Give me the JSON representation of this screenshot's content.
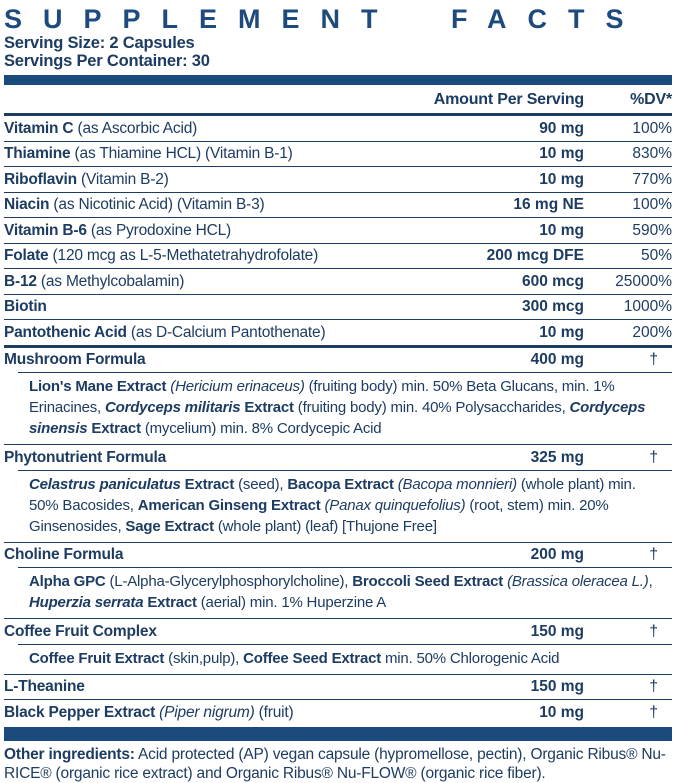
{
  "header": {
    "title": "SUPPLEMENT FACTS",
    "serving_size": "Serving Size: 2 Capsules",
    "servings_per_container": "Servings Per Container: 30"
  },
  "columns": {
    "amount": "Amount Per Serving",
    "dv": "%DV*"
  },
  "colors": {
    "text_navy": "#1d3c62",
    "bar_blue": "#1b4a7c",
    "title_blue": "#1e4b7d"
  },
  "rows": [
    {
      "name": "Vitamin C",
      "detail": " (as Ascorbic Acid)",
      "amount": "90 mg",
      "dv": "100%"
    },
    {
      "name": "Thiamine",
      "detail": " (as Thiamine HCL) (Vitamin B-1)",
      "amount": "10 mg",
      "dv": "830%"
    },
    {
      "name": "Riboflavin",
      "detail": " (Vitamin B-2)",
      "amount": "10 mg",
      "dv": "770%"
    },
    {
      "name": "Niacin",
      "detail": " (as Nicotinic Acid) (Vitamin B-3)",
      "amount": "16 mg NE",
      "dv": "100%"
    },
    {
      "name": "Vitamin B-6",
      "detail": " (as Pyrodoxine HCL)",
      "amount": "10 mg",
      "dv": "590%"
    },
    {
      "name": "Folate",
      "detail": " (120 mcg as L-5-Methatetrahydrofolate)",
      "amount": "200 mcg DFE",
      "dv": "50%"
    },
    {
      "name": "B-12",
      "detail": " (as Methylcobalamin)",
      "amount": "600 mcg",
      "dv": "25000%"
    },
    {
      "name": "Biotin",
      "detail": "",
      "amount": "300 mcg",
      "dv": "1000%"
    },
    {
      "name": "Pantothenic Acid",
      "detail": " (as D-Calcium Pantothenate)",
      "amount": "10 mg",
      "dv": "200%"
    },
    {
      "name": "Mushroom Formula",
      "amount": "400 mg",
      "dv": "†",
      "sub": [
        "Lion's Mane Extract",
        " (Hericium erinaceus)",
        " (fruiting body) min. 50% Beta Glucans, min. 1% Erinacines, ",
        "Cordyceps militaris",
        " Extract",
        " (fruiting body) min. 40% Polysaccharides, ",
        "Cordyceps sinensis",
        " Extract",
        " (mycelium) min. 8% Cordycepic Acid"
      ]
    },
    {
      "name": "Phytonutrient Formula",
      "amount": "325 mg",
      "dv": "†",
      "sub": [
        "Celastrus paniculatus",
        " Extract",
        " (seed), ",
        "Bacopa Extract",
        " (Bacopa monnieri)",
        " (whole plant) min. 50% Bacosides, ",
        "American Ginseng Extract",
        " (Panax quinquefolius)",
        " (root, stem) min. 20% Ginsenosides, ",
        "Sage Extract",
        " (whole plant) (leaf) [Thujone Free]"
      ]
    },
    {
      "name": "Choline Formula",
      "amount": "200 mg",
      "dv": "†",
      "sub": [
        "Alpha GPC",
        " (L-Alpha-Glycerylphosphorylcholine), ",
        "Broccoli Seed Extract",
        " (Brassica oleracea L.)",
        ", ",
        "Huperzia serrata",
        " Extract",
        " (aerial) min. 1% Huperzine A"
      ]
    },
    {
      "name": "Coffee Fruit Complex",
      "amount": "150 mg",
      "dv": "†",
      "sub": [
        "Coffee Fruit Extract",
        " (skin,pulp), ",
        "Coffee Seed Extract",
        " min. 50% Chlorogenic Acid"
      ]
    },
    {
      "name": "L-Theanine",
      "detail": "",
      "amount": "150 mg",
      "dv": "†"
    },
    {
      "name": "Black Pepper Extract",
      "detail_italic": " (Piper nigrum)",
      "detail_rest": " (fruit)",
      "amount": "10 mg",
      "dv": "†"
    }
  ],
  "other_ingredients": {
    "label": "Other ingredients:",
    "text": " Acid protected (AP) vegan capsule (hypromellose, pectin), Organic Ribus® Nu-RICE® (organic rice extract) and Organic Ribus® Nu-FLOW® (organic rice fiber)."
  }
}
